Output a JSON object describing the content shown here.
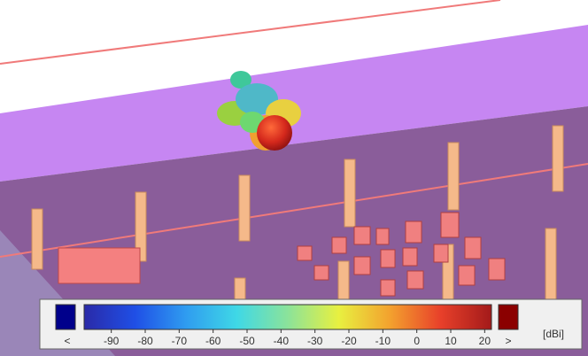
{
  "colorbar": {
    "range": [
      -98,
      22
    ],
    "ticks": [
      -90,
      -80,
      -70,
      -60,
      -50,
      -40,
      -30,
      -20,
      -10,
      0,
      10,
      20
    ],
    "under_label": "<",
    "over_label": ">",
    "unit": "[dBi]",
    "under_color": "#00008b",
    "over_color": "#8b0000",
    "colors": [
      "#2a2aa8",
      "#1f4fe6",
      "#2f9cf0",
      "#3fd8e6",
      "#8be39a",
      "#e8f040",
      "#f3a22e",
      "#e8402a",
      "#a31a1a"
    ]
  }
}
